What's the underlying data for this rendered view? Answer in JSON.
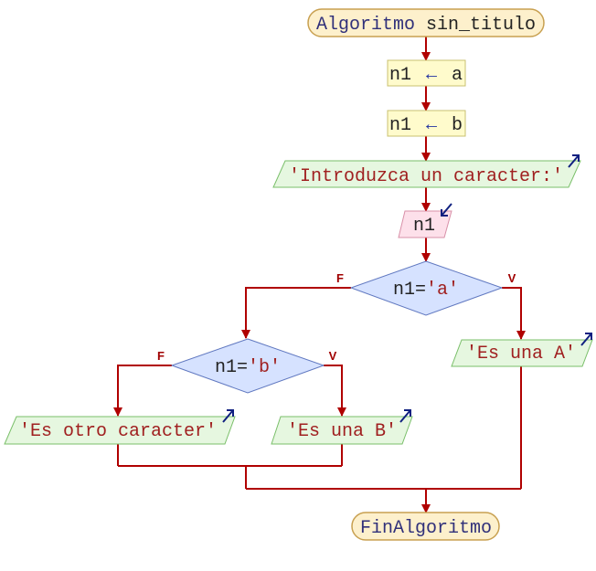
{
  "start": {
    "keyword": "Algoritmo",
    "name": "sin_titulo"
  },
  "assign1": {
    "var": "n1",
    "arrow": "←",
    "value": "a"
  },
  "assign2": {
    "var": "n1",
    "arrow": "←",
    "value": "b"
  },
  "output_prompt": {
    "text": "'Introduzca un caracter:'"
  },
  "input": {
    "var": "n1"
  },
  "decision1": {
    "left": "n1=",
    "literal": "'a'",
    "false_label": "F",
    "true_label": "V"
  },
  "decision2": {
    "left": "n1=",
    "literal": "'b'",
    "false_label": "F",
    "true_label": "V"
  },
  "output_a": {
    "text": "'Es una A'"
  },
  "output_b": {
    "text": "'Es una B'"
  },
  "output_other": {
    "text": "'Es otro caracter'"
  },
  "end": {
    "text": "FinAlgoritmo"
  },
  "colors": {
    "terminal_fill": "#fdf0cc",
    "terminal_stroke": "#c8a050",
    "assign_fill": "#fffbcc",
    "output_fill": "#e6f7e0",
    "input_fill": "#fde0ea",
    "decision_fill": "#d6e2ff",
    "edge": "#b00000",
    "io_arrow": "#102080"
  }
}
